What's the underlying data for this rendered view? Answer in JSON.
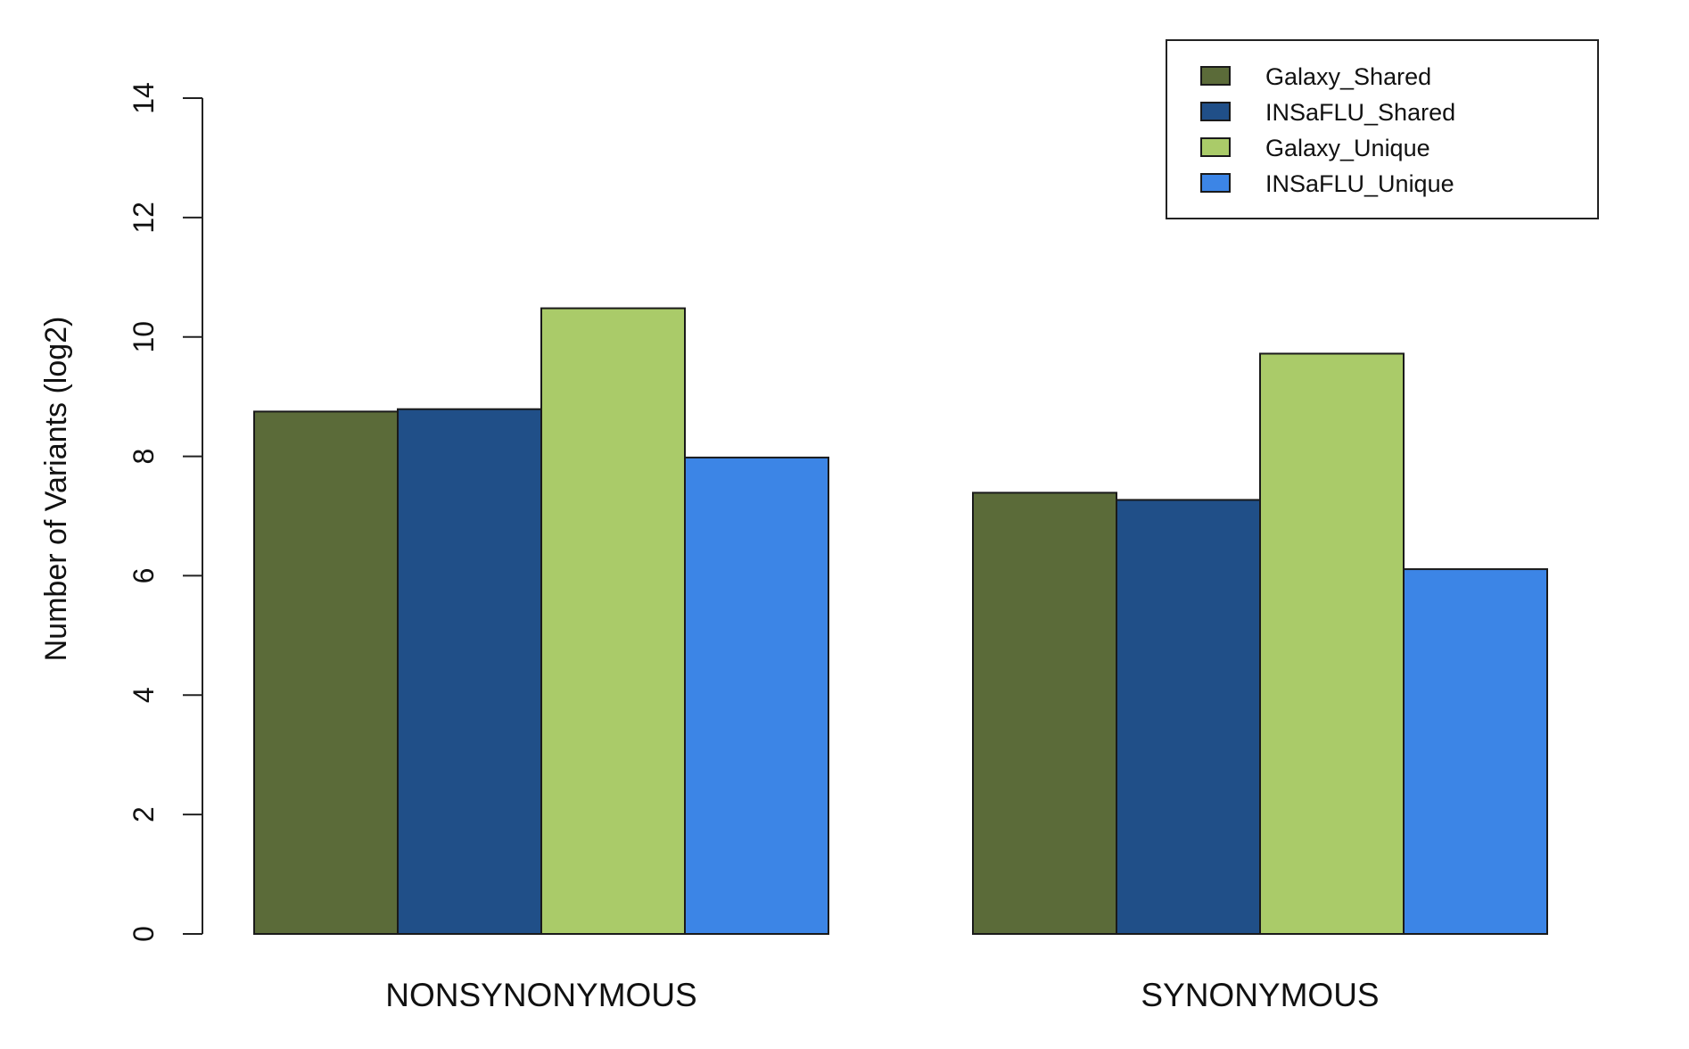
{
  "chart_data": {
    "type": "bar",
    "ylabel": "Number of Variants (log2)",
    "xlabel": "",
    "title": "",
    "ylim": [
      0,
      14
    ],
    "yticks": [
      0,
      2,
      4,
      6,
      8,
      10,
      12,
      14
    ],
    "categories": [
      "NONSYNONYMOUS",
      "SYNONYMOUS"
    ],
    "series": [
      {
        "name": "Galaxy_Shared",
        "color": "#5b6b39",
        "values": [
          8.75,
          7.39
        ]
      },
      {
        "name": "INSaFLU_Shared",
        "color": "#204f88",
        "values": [
          8.79,
          7.27
        ]
      },
      {
        "name": "Galaxy_Unique",
        "color": "#aacb69",
        "values": [
          10.48,
          9.72
        ]
      },
      {
        "name": "INSaFLU_Unique",
        "color": "#3c85e6",
        "values": [
          7.98,
          6.11
        ]
      }
    ],
    "legend_position": "top-right",
    "grid": false
  }
}
